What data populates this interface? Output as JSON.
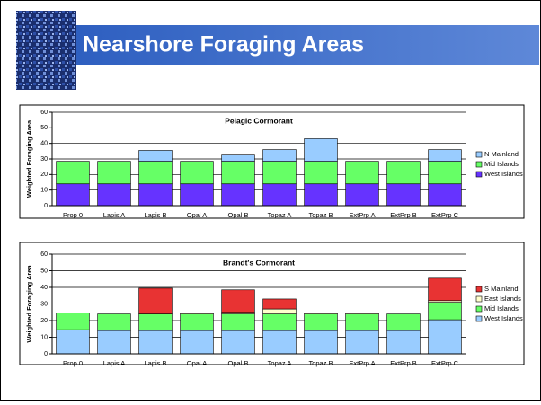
{
  "slide": {
    "title": "Nearshore Foraging Areas"
  },
  "chart_data": [
    {
      "type": "stacked-bar",
      "title": "Pelagic Cormorant",
      "y_label": "Weighted Foraging Area",
      "categories": [
        "Prop 0",
        "Lapis A",
        "Lapis B",
        "Opal A",
        "Opal B",
        "Topaz A",
        "Topaz B",
        "ExtPrp A",
        "ExtPrp B",
        "ExtPrp C"
      ],
      "series": [
        {
          "name": "West Islands",
          "color": "#6633FF",
          "values": [
            14,
            14,
            14,
            14,
            14,
            14,
            14,
            14,
            14,
            14
          ]
        },
        {
          "name": "Mid Islands",
          "color": "#66FF66",
          "values": [
            14.5,
            14.5,
            14.5,
            14.5,
            14.5,
            14.5,
            14.5,
            14.5,
            14.5,
            14.5
          ]
        },
        {
          "name": "N Mainland",
          "color": "#99CCFF",
          "values": [
            0,
            0,
            7,
            0,
            4,
            7.5,
            14.5,
            0,
            0,
            7.5
          ]
        }
      ],
      "ylim": [
        0,
        60
      ],
      "yticks": [
        0,
        10,
        20,
        30,
        40,
        50,
        60
      ],
      "grid": true,
      "legend": "right"
    },
    {
      "type": "stacked-bar",
      "title": "Brandt's Cormorant",
      "y_label": "Weighted Foraging Area",
      "categories": [
        "Prop 0",
        "Lapis A",
        "Lapis B",
        "Opal A",
        "Opal B",
        "Topaz A",
        "Topaz B",
        "ExtPrp A",
        "ExtPrp B",
        "ExtPrp C"
      ],
      "series": [
        {
          "name": "West Islands",
          "color": "#99CCFF",
          "values": [
            14.5,
            14,
            14,
            14,
            14,
            14,
            14,
            14,
            14,
            20.5
          ]
        },
        {
          "name": "Mid Islands",
          "color": "#66FF66",
          "values": [
            10,
            10,
            10,
            10,
            10,
            10,
            10,
            10,
            10,
            10.5
          ]
        },
        {
          "name": "East Islands",
          "color": "#FFFFCC",
          "values": [
            0,
            0,
            0,
            0.7,
            1,
            3,
            0.7,
            0.7,
            0,
            1
          ]
        },
        {
          "name": "S Mainland",
          "color": "#E83333",
          "values": [
            0,
            0,
            15.5,
            0,
            13.5,
            6,
            0,
            0,
            0,
            13.5
          ]
        }
      ],
      "ylim": [
        0,
        60
      ],
      "yticks": [
        0,
        10,
        20,
        30,
        40,
        50,
        60
      ],
      "grid": true,
      "legend": "right"
    }
  ]
}
